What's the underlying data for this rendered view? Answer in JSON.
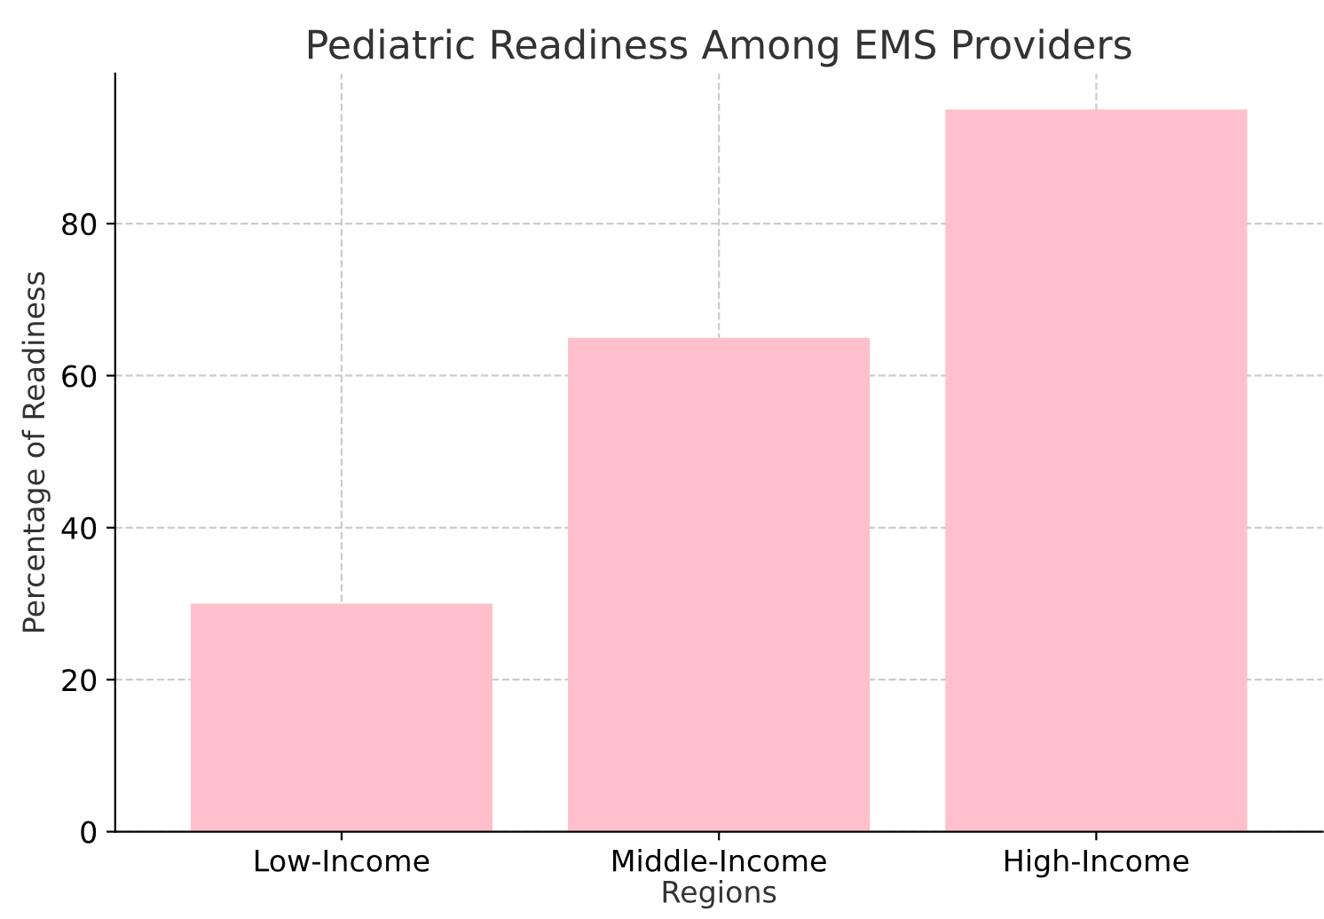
{
  "chart_data": {
    "type": "bar",
    "title": "Pediatric Readiness Among EMS Providers",
    "xlabel": "Regions",
    "ylabel": "Percentage of Readiness",
    "categories": [
      "Low-Income",
      "Middle-Income",
      "High-Income"
    ],
    "values": [
      30,
      65,
      95
    ],
    "color": "#ffc0cb",
    "ylim": [
      0,
      99.75
    ],
    "yticks": [
      0,
      20,
      40,
      60,
      80
    ],
    "grid": true
  }
}
